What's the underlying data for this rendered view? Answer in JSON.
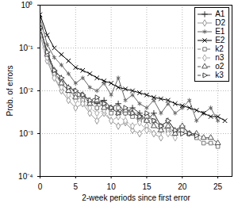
{
  "chart_data": {
    "type": "line",
    "x_label": "2-week periods since first error",
    "y_label": "Prob. of errors",
    "log": "y",
    "grid": true,
    "legend": "upper right",
    "xlim": [
      0,
      27
    ],
    "xticks": [
      0,
      5,
      10,
      15,
      20,
      25
    ],
    "ylim": [
      0.0001,
      1
    ],
    "yticks": [
      {
        "value": 0.0001,
        "label": "10⁻⁴"
      },
      {
        "value": 0.001,
        "label": "10⁻³"
      },
      {
        "value": 0.01,
        "label": "10⁻²"
      },
      {
        "value": 0.1,
        "label": "10⁻¹"
      },
      {
        "value": 1,
        "label": "10⁰"
      }
    ],
    "x": [
      0,
      1,
      2,
      3,
      4,
      5,
      6,
      7,
      8,
      9,
      10,
      11,
      12,
      13,
      14,
      15,
      16,
      17,
      18,
      19,
      20,
      21,
      22,
      23,
      24,
      25,
      26
    ],
    "series": [
      {
        "name": "A1",
        "color": "#333333",
        "marker": "plus",
        "line_style": "solid",
        "values": [
          0.3,
          0.08,
          0.03,
          0.02,
          0.012,
          0.01,
          0.008,
          0.006,
          0.005,
          0.006,
          0.004,
          0.005,
          0.003,
          0.004,
          0.003,
          0.002,
          0.003,
          0.0015,
          0.002,
          0.0012,
          0.0015,
          0.001,
          null,
          null,
          null,
          null,
          null
        ]
      },
      {
        "name": "D2",
        "color": "#999999",
        "marker": "diamond",
        "line_style": "solid",
        "values": [
          0.2,
          0.05,
          0.02,
          0.01,
          0.006,
          0.004,
          0.005,
          0.003,
          0.002,
          0.003,
          0.002,
          0.0015,
          0.0018,
          0.0012,
          0.001,
          0.0015,
          0.001,
          0.0008,
          null,
          null,
          null,
          null,
          null,
          null,
          null,
          null,
          null
        ]
      },
      {
        "name": "E1",
        "color": "#666666",
        "marker": "asterisk",
        "line_style": "solid",
        "values": [
          0.5,
          0.12,
          0.06,
          0.04,
          0.025,
          0.015,
          0.02,
          0.012,
          0.01,
          0.015,
          0.008,
          0.02,
          0.006,
          0.008,
          0.005,
          0.004,
          0.006,
          0.003,
          0.005,
          0.003,
          0.004,
          0.006,
          0.002,
          0.003,
          0.004,
          0.002,
          null
        ]
      },
      {
        "name": "E2",
        "color": "#000000",
        "marker": "times",
        "line_style": "solid",
        "values": [
          0.6,
          0.2,
          0.1,
          0.07,
          0.05,
          0.035,
          0.03,
          0.025,
          0.02,
          0.017,
          0.015,
          0.012,
          0.011,
          0.01,
          0.009,
          0.008,
          0.007,
          0.0065,
          0.006,
          0.005,
          0.0045,
          0.004,
          0.0035,
          0.003,
          0.0025,
          0.0025,
          0.002
        ]
      },
      {
        "name": "k2",
        "color": "#777777",
        "marker": "square",
        "line_style": "dashed",
        "values": [
          0.35,
          0.07,
          0.025,
          0.015,
          0.01,
          0.008,
          0.006,
          0.005,
          0.004,
          0.005,
          0.003,
          0.004,
          0.003,
          0.0025,
          0.002,
          0.0025,
          0.002,
          0.0015,
          0.0012,
          0.001,
          0.0012,
          0.001,
          0.0008,
          0.0006,
          0.0006,
          0.0005,
          null
        ]
      },
      {
        "name": "n3",
        "color": "#aaaaaa",
        "marker": "diamond",
        "line_style": "dashed",
        "values": [
          0.25,
          0.06,
          0.02,
          0.012,
          0.008,
          0.006,
          0.005,
          0.004,
          0.003,
          0.0035,
          0.002,
          0.0025,
          0.002,
          0.0015,
          0.0018,
          0.0012,
          0.001,
          0.0012,
          0.001,
          0.0008,
          null,
          null,
          null,
          null,
          null,
          null,
          null
        ]
      },
      {
        "name": "o2",
        "color": "#555555",
        "marker": "triangle",
        "line_style": "dashed",
        "values": [
          0.3,
          0.07,
          0.03,
          0.015,
          0.01,
          0.007,
          0.008,
          0.005,
          0.006,
          0.004,
          0.004,
          0.003,
          0.0035,
          0.003,
          0.0025,
          0.002,
          0.0015,
          0.0012,
          0.0015,
          0.001,
          0.0015,
          0.001,
          0.001,
          0.0008,
          0.0008,
          0.0006,
          null
        ]
      },
      {
        "name": "k3",
        "color": "#444444",
        "marker": "triangle-right",
        "line_style": "dashed",
        "values": [
          0.3,
          0.08,
          0.03,
          0.02,
          0.012,
          0.01,
          0.008,
          0.006,
          0.007,
          0.005,
          0.004,
          0.003,
          0.004,
          0.003,
          0.0025,
          0.003,
          0.002,
          0.0015,
          0.002,
          0.0012,
          0.001,
          0.001,
          0.0009,
          null,
          null,
          null,
          null
        ]
      }
    ]
  }
}
